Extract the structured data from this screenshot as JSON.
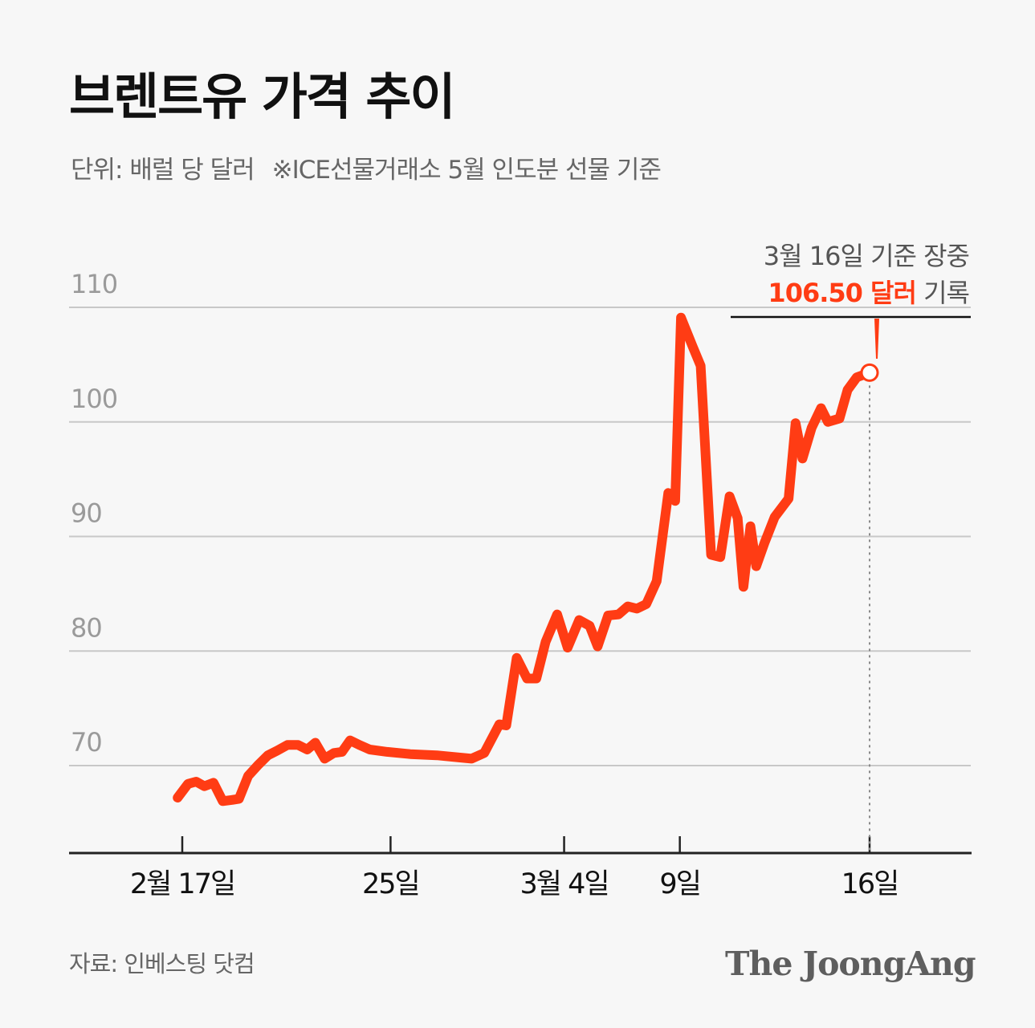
{
  "title": "브렌트유 가격 추이",
  "unit_label": "단위: 배럴 당 달러",
  "basis_note": "※ICE선물거래소 5월 인도분 선물 기준",
  "source": "자료: 인베스팅 닷컴",
  "brand": "The JoongAng",
  "colors": {
    "line": "#ff3c14",
    "grid": "#c8c8c8",
    "axis": "#222222",
    "background": "#f7f7f7",
    "highlight": "#ff3c14"
  },
  "chart_data": {
    "type": "line",
    "grid": true,
    "ylim": [
      62,
      112
    ],
    "y_ticks": [
      70,
      80,
      90,
      100,
      110
    ],
    "y_tick_labels": [
      "70",
      "80",
      "90",
      "100",
      "110"
    ],
    "x_ticks": [
      {
        "x": 0,
        "label": "2월 17일"
      },
      {
        "x": 18,
        "label": "25일"
      },
      {
        "x": 33,
        "label": "3월 4일"
      },
      {
        "x": 43,
        "label": "9일"
      },
      {
        "x": 59.4,
        "label": "16일"
      }
    ],
    "xlim": [
      -2.3,
      63.8
    ],
    "series": [
      {
        "points": [
          [
            -0.4,
            67.2
          ],
          [
            0.5,
            68.4
          ],
          [
            1.2,
            68.6
          ],
          [
            1.9,
            68.2
          ],
          [
            2.7,
            68.5
          ],
          [
            3.5,
            66.9
          ],
          [
            4.3,
            67.0
          ],
          [
            4.9,
            67.1
          ],
          [
            5.7,
            69.1
          ],
          [
            6.6,
            70.1
          ],
          [
            7.4,
            70.9
          ],
          [
            8.2,
            71.3
          ],
          [
            9.1,
            71.8
          ],
          [
            10.0,
            71.8
          ],
          [
            10.8,
            71.4
          ],
          [
            11.5,
            72.0
          ],
          [
            12.3,
            70.6
          ],
          [
            13.1,
            71.1
          ],
          [
            13.8,
            71.2
          ],
          [
            14.5,
            72.2
          ],
          [
            15.3,
            71.8
          ],
          [
            16.2,
            71.4
          ],
          [
            17.7,
            71.2
          ],
          [
            19.7,
            71.0
          ],
          [
            22.0,
            70.9
          ],
          [
            24.0,
            70.7
          ],
          [
            25.0,
            70.6
          ],
          [
            26.1,
            71.1
          ],
          [
            27.4,
            73.6
          ],
          [
            28.0,
            73.5
          ],
          [
            28.9,
            79.4
          ],
          [
            29.8,
            77.6
          ],
          [
            30.6,
            77.6
          ],
          [
            31.4,
            80.8
          ],
          [
            32.4,
            83.2
          ],
          [
            33.3,
            80.3
          ],
          [
            34.3,
            82.7
          ],
          [
            35.2,
            82.2
          ],
          [
            35.9,
            80.4
          ],
          [
            36.8,
            83.1
          ],
          [
            37.7,
            83.2
          ],
          [
            38.5,
            83.9
          ],
          [
            39.3,
            83.7
          ],
          [
            40.1,
            84.1
          ],
          [
            41.0,
            86.1
          ],
          [
            42.0,
            93.8
          ],
          [
            42.6,
            93.1
          ],
          [
            43.1,
            109.1
          ],
          [
            44.1,
            106.6
          ],
          [
            44.8,
            104.9
          ],
          [
            45.7,
            88.4
          ],
          [
            46.5,
            88.2
          ],
          [
            47.3,
            93.5
          ],
          [
            48.0,
            91.6
          ],
          [
            48.5,
            85.6
          ],
          [
            49.1,
            90.9
          ],
          [
            49.6,
            87.4
          ],
          [
            50.3,
            89.4
          ],
          [
            51.2,
            91.7
          ],
          [
            52.4,
            93.3
          ],
          [
            53.0,
            99.9
          ],
          [
            53.6,
            96.8
          ],
          [
            54.4,
            99.5
          ],
          [
            55.2,
            101.2
          ],
          [
            55.8,
            100.0
          ],
          [
            56.8,
            100.3
          ],
          [
            57.5,
            102.8
          ],
          [
            58.3,
            103.9
          ],
          [
            59.4,
            104.3
          ]
        ]
      }
    ],
    "annotation": {
      "line1": "3월 16일 기준 장중",
      "value_text": "106.50 달러",
      "suffix": "기록"
    }
  }
}
